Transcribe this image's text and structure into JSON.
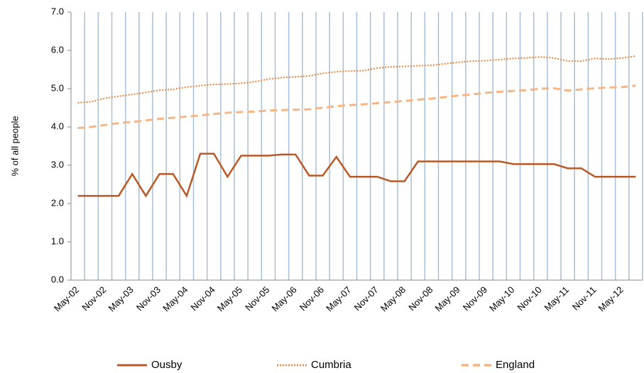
{
  "chart_data": {
    "type": "line",
    "y_label": "% of all people",
    "categories": [
      "May-02",
      null,
      "Nov-02",
      null,
      "May-03",
      null,
      "Nov-03",
      null,
      "May-04",
      null,
      "Nov-04",
      null,
      "May-05",
      null,
      "Nov-05",
      null,
      "May-06",
      null,
      "Nov-06",
      null,
      "May-07",
      null,
      "Nov-07",
      null,
      "May-08",
      null,
      "Nov-08",
      null,
      "May-09",
      null,
      "Nov-09",
      null,
      "May-10",
      null,
      "Nov-10",
      null,
      "May-11",
      null,
      "Nov-11",
      null,
      "May-12",
      null
    ],
    "series": [
      {
        "name": "Ousby",
        "color": "#b85a28",
        "line_style": "solid",
        "values": [
          2.2,
          2.2,
          2.2,
          2.2,
          2.77,
          2.2,
          2.77,
          2.77,
          2.2,
          3.3,
          3.3,
          2.7,
          3.25,
          3.25,
          3.25,
          3.28,
          3.28,
          2.73,
          2.73,
          3.22,
          2.7,
          2.7,
          2.7,
          2.58,
          2.58,
          3.1,
          3.1,
          3.1,
          3.1,
          3.1,
          3.1,
          3.1,
          3.03,
          3.03,
          3.03,
          3.03,
          2.92,
          2.92,
          2.7,
          2.7,
          2.7,
          2.7
        ]
      },
      {
        "name": "Cumbria",
        "color": "#e8843c",
        "line_style": "dotted",
        "values": [
          4.63,
          4.66,
          4.75,
          4.8,
          4.85,
          4.9,
          4.96,
          4.98,
          5.04,
          5.08,
          5.11,
          5.12,
          5.14,
          5.18,
          5.25,
          5.29,
          5.31,
          5.33,
          5.4,
          5.44,
          5.46,
          5.47,
          5.54,
          5.57,
          5.58,
          5.6,
          5.61,
          5.65,
          5.69,
          5.72,
          5.73,
          5.76,
          5.79,
          5.8,
          5.83,
          5.8,
          5.72,
          5.72,
          5.79,
          5.77,
          5.8,
          5.85
        ]
      },
      {
        "name": "England",
        "color": "#f5b584",
        "line_style": "dashed",
        "values": [
          3.97,
          4.0,
          4.05,
          4.1,
          4.13,
          4.17,
          4.21,
          4.24,
          4.27,
          4.3,
          4.34,
          4.37,
          4.39,
          4.4,
          4.43,
          4.44,
          4.45,
          4.46,
          4.5,
          4.54,
          4.57,
          4.59,
          4.62,
          4.65,
          4.68,
          4.71,
          4.74,
          4.78,
          4.82,
          4.85,
          4.89,
          4.92,
          4.94,
          4.96,
          5.0,
          5.01,
          4.95,
          4.98,
          5.01,
          5.03,
          5.04,
          5.08
        ]
      }
    ],
    "ylim": [
      0,
      7
    ],
    "yticks": [
      {
        "value": 0,
        "label": "0.0"
      },
      {
        "value": 1,
        "label": "1.0"
      },
      {
        "value": 2,
        "label": "2.0"
      },
      {
        "value": 3,
        "label": "3.0"
      },
      {
        "value": 4,
        "label": "4.0"
      },
      {
        "value": 5,
        "label": "5.0"
      },
      {
        "value": 6,
        "label": "6.0"
      },
      {
        "value": 7,
        "label": "7.0"
      }
    ],
    "grid": "vertical",
    "legend": "bottom"
  }
}
